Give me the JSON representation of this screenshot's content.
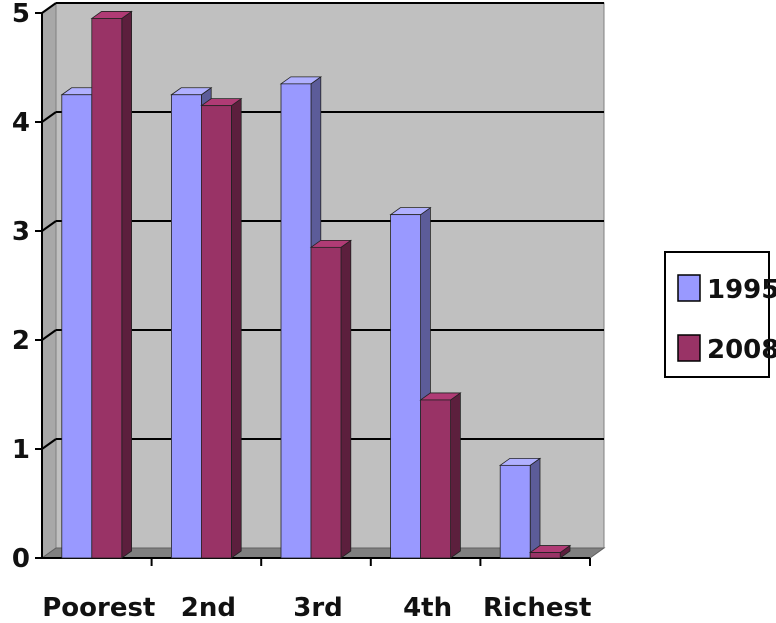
{
  "chart_data": {
    "type": "bar",
    "categories": [
      "Poorest",
      "2nd",
      "3rd",
      "4th",
      "Richest"
    ],
    "series": [
      {
        "name": "1995",
        "values": [
          4.25,
          4.25,
          4.35,
          3.15,
          0.85
        ],
        "color": "#9999ff"
      },
      {
        "name": "2008",
        "values": [
          4.95,
          4.15,
          2.85,
          1.45,
          0.05
        ],
        "color": "#993366"
      }
    ],
    "ylim": [
      0,
      5
    ],
    "yticks": [
      0,
      1,
      2,
      3,
      4,
      5
    ],
    "grid": true,
    "legend_position": "right",
    "style": "3d-clustered-column"
  },
  "legend": {
    "items": [
      {
        "label": "1995",
        "color": "#9999ff"
      },
      {
        "label": "2008",
        "color": "#993366"
      }
    ]
  }
}
